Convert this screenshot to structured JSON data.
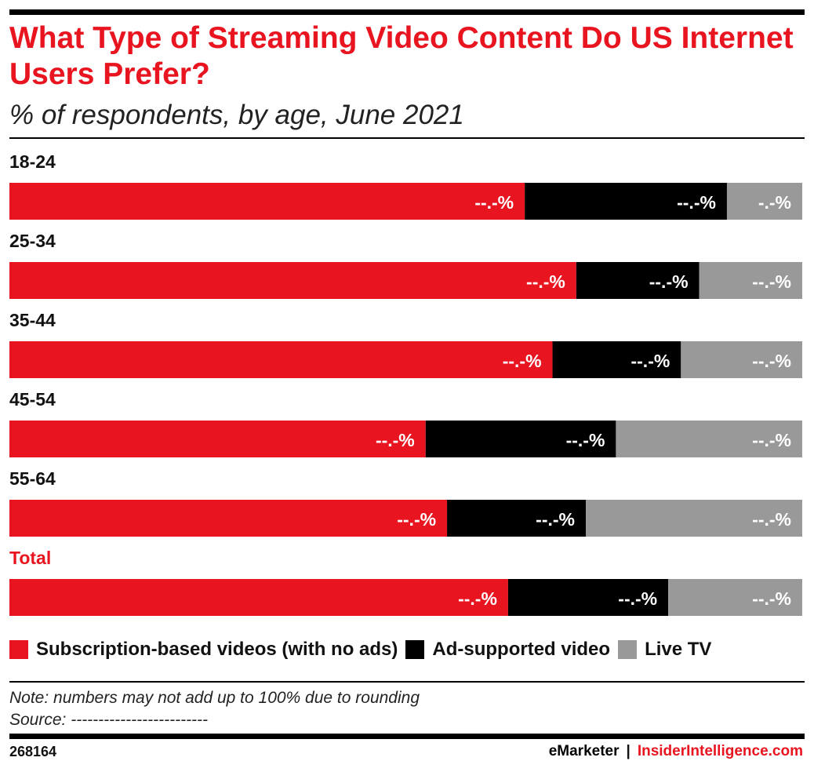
{
  "header": {
    "title": "What Type of Streaming Video Content Do US Internet Users Prefer?",
    "subtitle": "% of respondents, by age, June 2021"
  },
  "chart_data": {
    "type": "bar",
    "orientation": "horizontal",
    "stacked": true,
    "categories": [
      "18-24",
      "25-34",
      "35-44",
      "45-54",
      "55-64",
      "Total"
    ],
    "series": [
      {
        "name": "Subscription-based videos (with no ads)",
        "color": "#e8141f",
        "values": [
          65,
          71.5,
          68.5,
          52.5,
          55.2,
          62.9
        ],
        "labels": [
          "--.-%",
          "--.-%",
          "--.-%",
          "--.-%",
          "--.-%",
          "--.-%"
        ]
      },
      {
        "name": "Ad-supported video",
        "color": "#000000",
        "values": [
          25.5,
          15.5,
          16.2,
          24,
          17.5,
          20.2
        ],
        "labels": [
          "--.-%",
          "--.-%",
          "--.-%",
          "--.-%",
          "--.-%",
          "--.-%"
        ]
      },
      {
        "name": "Live TV",
        "color": "#999999",
        "values": [
          9.5,
          13,
          15.3,
          23.5,
          27.3,
          16.9
        ],
        "labels": [
          "-.-%",
          "--.-%",
          "--.-%",
          "--.-%",
          "--.-%",
          "--.-%"
        ]
      }
    ],
    "highlight_category": "Total",
    "highlight_color": "#e8141f",
    "xlim": [
      0,
      100
    ],
    "grid": false,
    "legend_position": "bottom-left"
  },
  "footer": {
    "note": "Note: numbers may not add up to 100% due to rounding",
    "source": "Source: -------------------------",
    "chart_id": "268164",
    "brand_left": "eMarketer",
    "brand_separator": "|",
    "brand_right": "InsiderIntelligence.com"
  }
}
